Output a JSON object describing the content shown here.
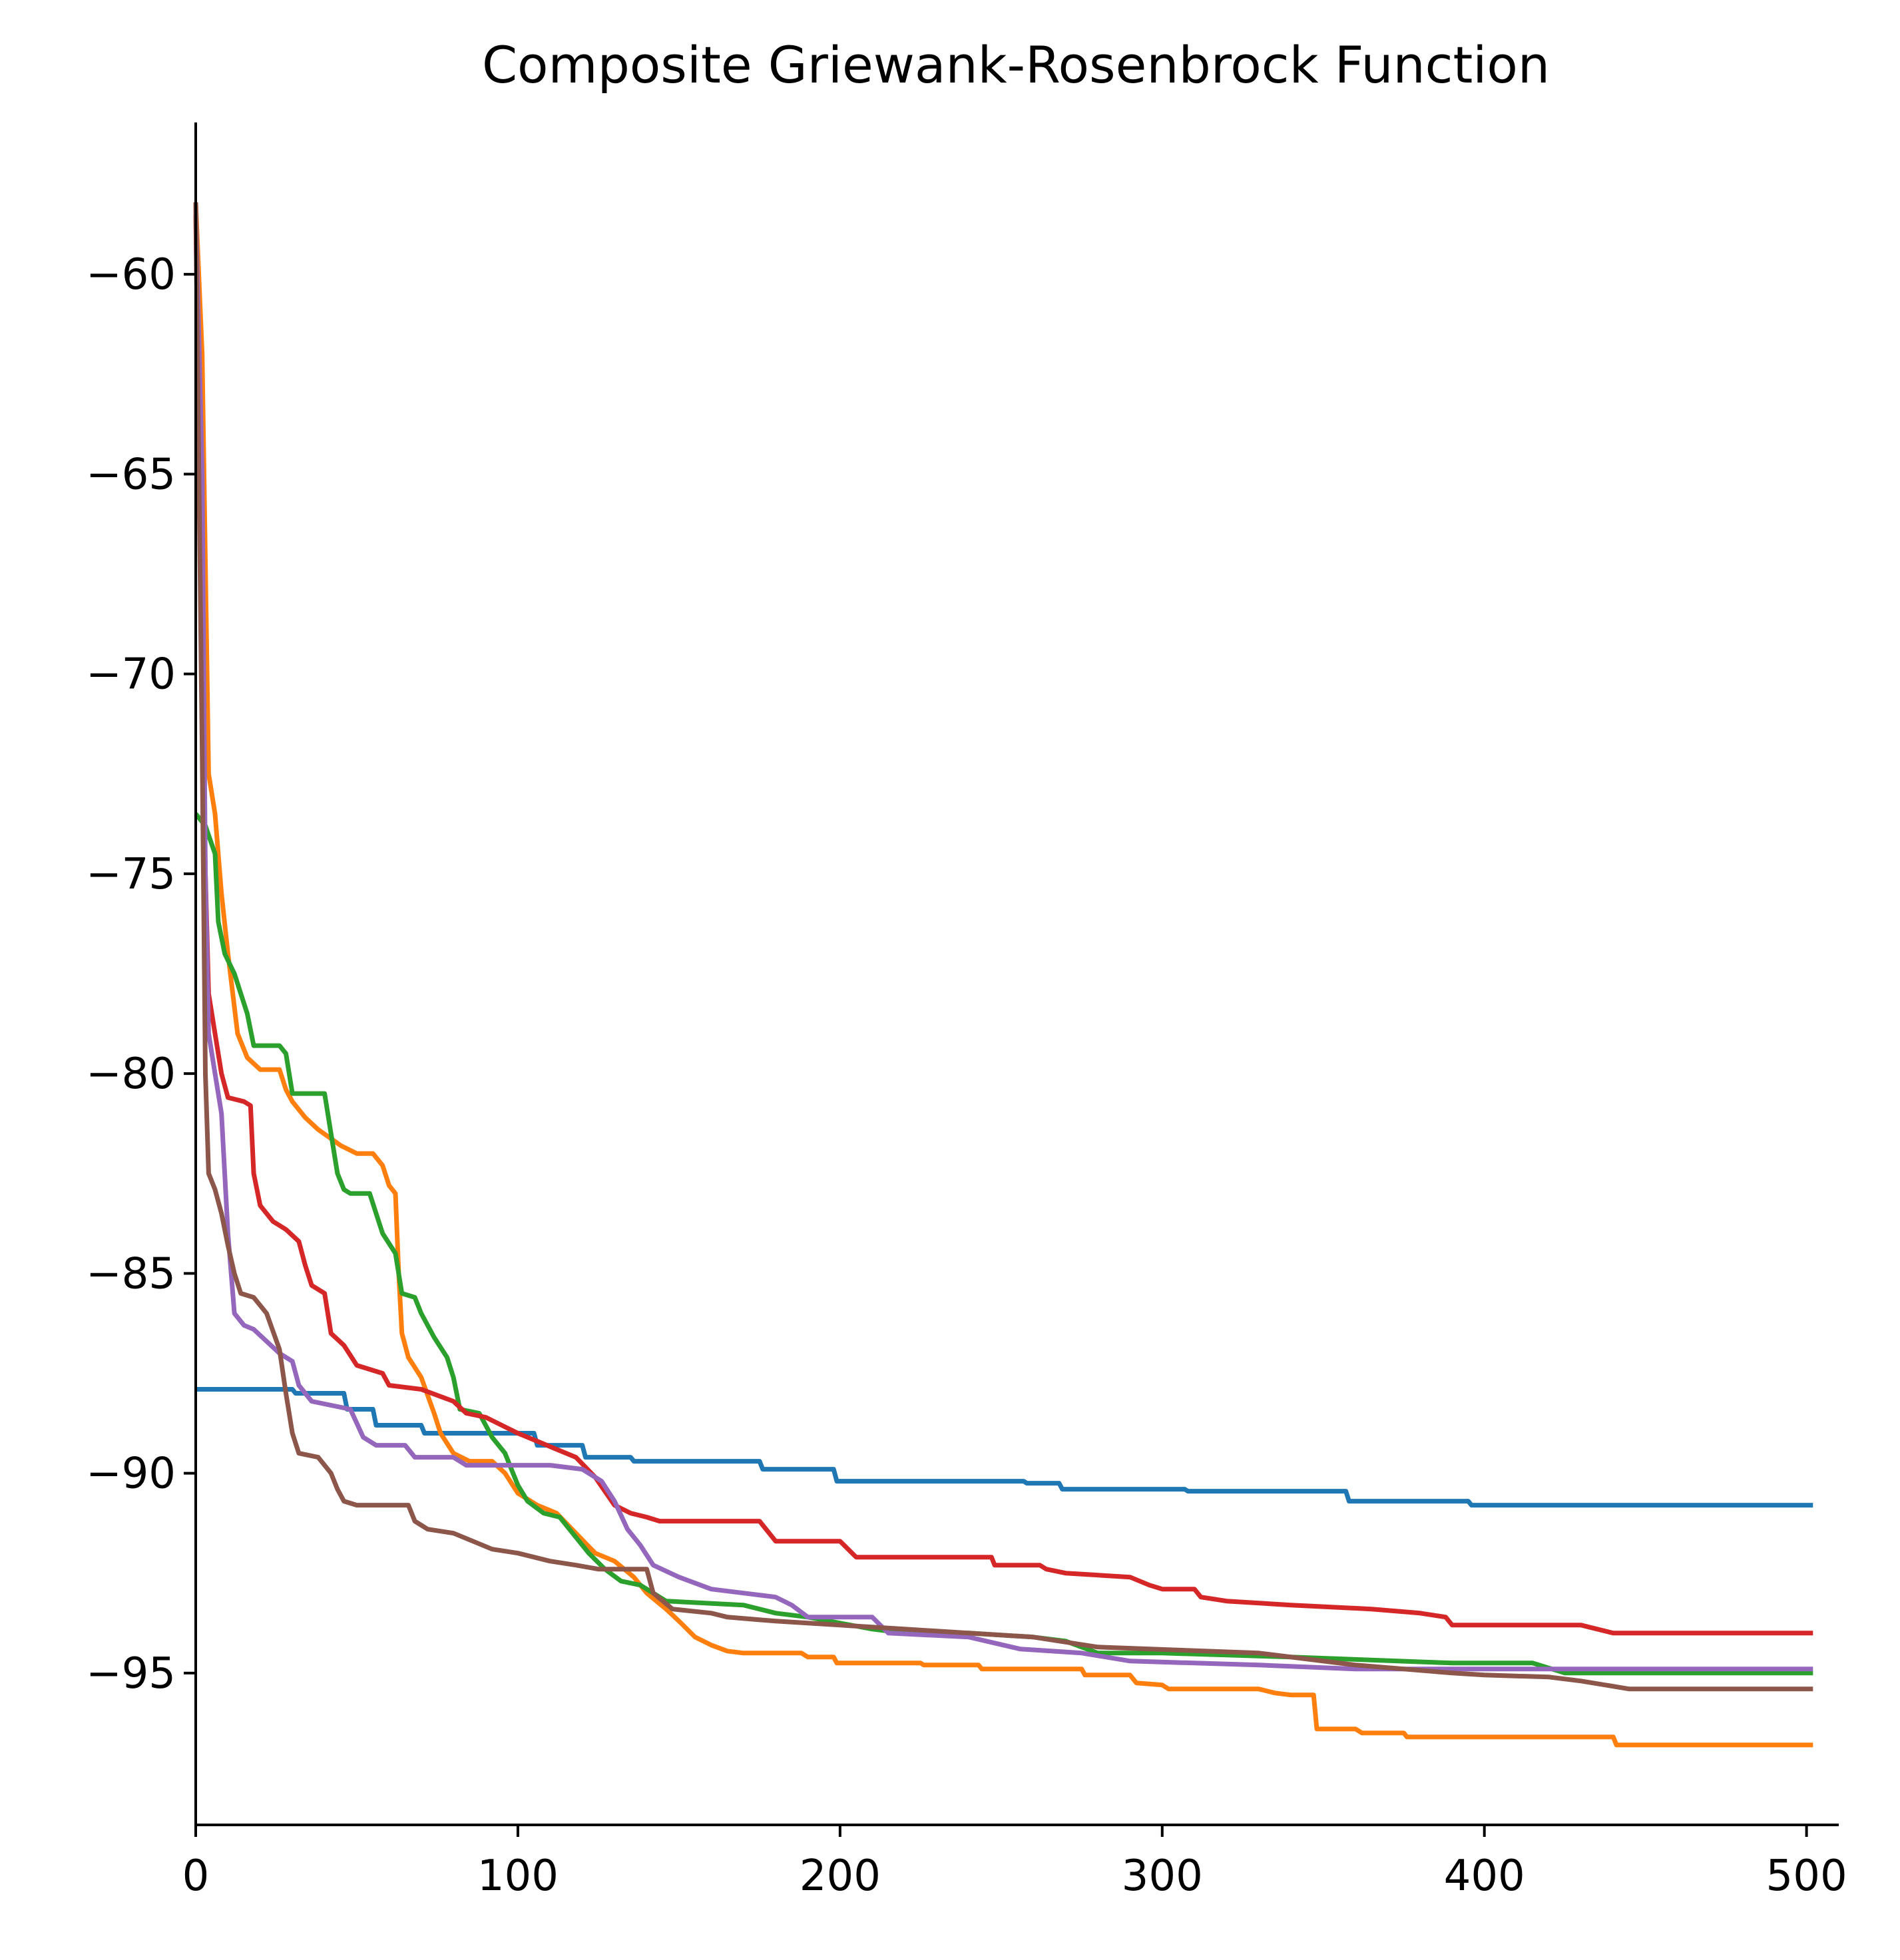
{
  "chart_data": {
    "type": "line",
    "title": "Composite Griewank-Rosenbrock Function",
    "xlabel": "",
    "ylabel": "",
    "xlim": [
      0,
      510
    ],
    "ylim": [
      -98.8,
      -56.2
    ],
    "x_ticks": [
      0,
      100,
      200,
      300,
      400,
      500
    ],
    "x_tick_labels": [
      "0",
      "100",
      "200",
      "300",
      "400",
      "500"
    ],
    "y_ticks": [
      -95,
      -90,
      -85,
      -80,
      -75,
      -70,
      -65,
      -60
    ],
    "y_tick_labels": [
      "−95",
      "−90",
      "−85",
      "−80",
      "−75",
      "−70",
      "−65",
      "−60"
    ],
    "grid": false,
    "series": [
      {
        "color": "#1f77b4",
        "points": [
          [
            0,
            -87.9
          ],
          [
            30,
            -87.9
          ],
          [
            31,
            -88.0
          ],
          [
            46,
            -88.0
          ],
          [
            47,
            -88.4
          ],
          [
            55,
            -88.4
          ],
          [
            56,
            -88.8
          ],
          [
            70,
            -88.8
          ],
          [
            71,
            -89.0
          ],
          [
            105,
            -89.0
          ],
          [
            106,
            -89.3
          ],
          [
            120,
            -89.3
          ],
          [
            121,
            -89.6
          ],
          [
            135,
            -89.6
          ],
          [
            136,
            -89.7
          ],
          [
            175,
            -89.7
          ],
          [
            176,
            -89.9
          ],
          [
            198,
            -89.9
          ],
          [
            199,
            -90.2
          ],
          [
            257,
            -90.2
          ],
          [
            258,
            -90.25
          ],
          [
            268,
            -90.25
          ],
          [
            269,
            -90.4
          ],
          [
            307,
            -90.4
          ],
          [
            308,
            -90.45
          ],
          [
            357,
            -90.45
          ],
          [
            358,
            -90.7
          ],
          [
            395,
            -90.7
          ],
          [
            396,
            -90.8
          ],
          [
            502,
            -90.8
          ]
        ]
      },
      {
        "color": "#ff7f0e",
        "points": [
          [
            0,
            -58.2
          ],
          [
            2,
            -62.0
          ],
          [
            4,
            -72.5
          ],
          [
            6,
            -73.5
          ],
          [
            8,
            -75.5
          ],
          [
            10,
            -77.0
          ],
          [
            13,
            -79.0
          ],
          [
            16,
            -79.6
          ],
          [
            20,
            -79.9
          ],
          [
            26,
            -79.9
          ],
          [
            28,
            -80.4
          ],
          [
            30,
            -80.7
          ],
          [
            34,
            -81.1
          ],
          [
            38,
            -81.4
          ],
          [
            45,
            -81.8
          ],
          [
            50,
            -82.0
          ],
          [
            55,
            -82.0
          ],
          [
            58,
            -82.3
          ],
          [
            60,
            -82.8
          ],
          [
            62,
            -83.0
          ],
          [
            63,
            -85.0
          ],
          [
            64,
            -86.5
          ],
          [
            66,
            -87.1
          ],
          [
            70,
            -87.6
          ],
          [
            74,
            -88.5
          ],
          [
            76,
            -89.0
          ],
          [
            80,
            -89.5
          ],
          [
            85,
            -89.7
          ],
          [
            92,
            -89.7
          ],
          [
            96,
            -90.0
          ],
          [
            100,
            -90.5
          ],
          [
            106,
            -90.8
          ],
          [
            112,
            -91.0
          ],
          [
            118,
            -91.5
          ],
          [
            124,
            -92.0
          ],
          [
            130,
            -92.2
          ],
          [
            136,
            -92.6
          ],
          [
            140,
            -93.0
          ],
          [
            146,
            -93.4
          ],
          [
            150,
            -93.7
          ],
          [
            155,
            -94.1
          ],
          [
            160,
            -94.3
          ],
          [
            165,
            -94.45
          ],
          [
            170,
            -94.5
          ],
          [
            188,
            -94.5
          ],
          [
            190,
            -94.6
          ],
          [
            198,
            -94.6
          ],
          [
            199,
            -94.75
          ],
          [
            225,
            -94.75
          ],
          [
            226,
            -94.8
          ],
          [
            243,
            -94.8
          ],
          [
            244,
            -94.9
          ],
          [
            275,
            -94.9
          ],
          [
            276,
            -95.05
          ],
          [
            290,
            -95.05
          ],
          [
            292,
            -95.25
          ],
          [
            300,
            -95.3
          ],
          [
            302,
            -95.4
          ],
          [
            330,
            -95.4
          ],
          [
            335,
            -95.5
          ],
          [
            340,
            -95.55
          ],
          [
            347,
            -95.55
          ],
          [
            348,
            -96.4
          ],
          [
            360,
            -96.4
          ],
          [
            362,
            -96.5
          ],
          [
            375,
            -96.5
          ],
          [
            376,
            -96.6
          ],
          [
            440,
            -96.6
          ],
          [
            441,
            -96.8
          ],
          [
            502,
            -96.8
          ]
        ]
      },
      {
        "color": "#2ca02c",
        "points": [
          [
            0,
            -73.5
          ],
          [
            3,
            -73.8
          ],
          [
            6,
            -74.5
          ],
          [
            7,
            -76.2
          ],
          [
            9,
            -77.0
          ],
          [
            12,
            -77.5
          ],
          [
            14,
            -78.0
          ],
          [
            16,
            -78.5
          ],
          [
            18,
            -79.3
          ],
          [
            26,
            -79.3
          ],
          [
            28,
            -79.5
          ],
          [
            30,
            -80.5
          ],
          [
            40,
            -80.5
          ],
          [
            42,
            -81.5
          ],
          [
            44,
            -82.5
          ],
          [
            46,
            -82.9
          ],
          [
            48,
            -83.0
          ],
          [
            54,
            -83.0
          ],
          [
            56,
            -83.5
          ],
          [
            58,
            -84.0
          ],
          [
            62,
            -84.5
          ],
          [
            64,
            -85.5
          ],
          [
            68,
            -85.6
          ],
          [
            70,
            -86.0
          ],
          [
            74,
            -86.6
          ],
          [
            78,
            -87.1
          ],
          [
            80,
            -87.6
          ],
          [
            82,
            -88.4
          ],
          [
            88,
            -88.5
          ],
          [
            92,
            -89.1
          ],
          [
            96,
            -89.5
          ],
          [
            98,
            -89.9
          ],
          [
            100,
            -90.3
          ],
          [
            103,
            -90.7
          ],
          [
            108,
            -91.0
          ],
          [
            113,
            -91.1
          ],
          [
            117,
            -91.5
          ],
          [
            122,
            -92.0
          ],
          [
            127,
            -92.4
          ],
          [
            132,
            -92.7
          ],
          [
            138,
            -92.8
          ],
          [
            142,
            -93.0
          ],
          [
            146,
            -93.2
          ],
          [
            170,
            -93.3
          ],
          [
            180,
            -93.5
          ],
          [
            190,
            -93.6
          ],
          [
            200,
            -93.75
          ],
          [
            210,
            -93.9
          ],
          [
            220,
            -94.0
          ],
          [
            240,
            -94.0
          ],
          [
            260,
            -94.1
          ],
          [
            270,
            -94.2
          ],
          [
            280,
            -94.5
          ],
          [
            300,
            -94.5
          ],
          [
            340,
            -94.6
          ],
          [
            390,
            -94.75
          ],
          [
            415,
            -94.75
          ],
          [
            425,
            -95.0
          ],
          [
            502,
            -95.0
          ]
        ]
      },
      {
        "color": "#d62728",
        "points": [
          [
            0,
            -58.5
          ],
          [
            2,
            -70.0
          ],
          [
            3,
            -75.0
          ],
          [
            4,
            -78.0
          ],
          [
            6,
            -79.0
          ],
          [
            8,
            -80.0
          ],
          [
            10,
            -80.6
          ],
          [
            15,
            -80.7
          ],
          [
            17,
            -80.8
          ],
          [
            18,
            -82.5
          ],
          [
            20,
            -83.3
          ],
          [
            24,
            -83.7
          ],
          [
            28,
            -83.9
          ],
          [
            32,
            -84.2
          ],
          [
            34,
            -84.8
          ],
          [
            36,
            -85.3
          ],
          [
            40,
            -85.5
          ],
          [
            42,
            -86.5
          ],
          [
            46,
            -86.8
          ],
          [
            50,
            -87.3
          ],
          [
            54,
            -87.4
          ],
          [
            58,
            -87.5
          ],
          [
            60,
            -87.8
          ],
          [
            70,
            -87.9
          ],
          [
            80,
            -88.2
          ],
          [
            84,
            -88.5
          ],
          [
            90,
            -88.6
          ],
          [
            100,
            -89.0
          ],
          [
            106,
            -89.2
          ],
          [
            112,
            -89.4
          ],
          [
            118,
            -89.6
          ],
          [
            124,
            -90.1
          ],
          [
            130,
            -90.8
          ],
          [
            135,
            -91.0
          ],
          [
            140,
            -91.1
          ],
          [
            144,
            -91.2
          ],
          [
            175,
            -91.2
          ],
          [
            180,
            -91.7
          ],
          [
            200,
            -91.7
          ],
          [
            205,
            -92.1
          ],
          [
            247,
            -92.1
          ],
          [
            248,
            -92.3
          ],
          [
            262,
            -92.3
          ],
          [
            264,
            -92.4
          ],
          [
            270,
            -92.5
          ],
          [
            290,
            -92.6
          ],
          [
            296,
            -92.8
          ],
          [
            300,
            -92.9
          ],
          [
            310,
            -92.9
          ],
          [
            312,
            -93.1
          ],
          [
            320,
            -93.2
          ],
          [
            340,
            -93.3
          ],
          [
            365,
            -93.4
          ],
          [
            380,
            -93.5
          ],
          [
            388,
            -93.6
          ],
          [
            390,
            -93.8
          ],
          [
            430,
            -93.8
          ],
          [
            440,
            -94.0
          ],
          [
            502,
            -94.0
          ]
        ]
      },
      {
        "color": "#9467bd",
        "points": [
          [
            0,
            -58.3
          ],
          [
            2,
            -65.0
          ],
          [
            3,
            -75.0
          ],
          [
            4,
            -79.0
          ],
          [
            6,
            -80.0
          ],
          [
            8,
            -81.0
          ],
          [
            10,
            -84.0
          ],
          [
            12,
            -86.0
          ],
          [
            15,
            -86.3
          ],
          [
            18,
            -86.4
          ],
          [
            22,
            -86.7
          ],
          [
            26,
            -87.0
          ],
          [
            30,
            -87.2
          ],
          [
            32,
            -87.8
          ],
          [
            36,
            -88.2
          ],
          [
            48,
            -88.4
          ],
          [
            52,
            -89.1
          ],
          [
            56,
            -89.3
          ],
          [
            65,
            -89.3
          ],
          [
            68,
            -89.6
          ],
          [
            80,
            -89.6
          ],
          [
            84,
            -89.8
          ],
          [
            110,
            -89.8
          ],
          [
            120,
            -89.9
          ],
          [
            126,
            -90.2
          ],
          [
            130,
            -90.7
          ],
          [
            134,
            -91.4
          ],
          [
            138,
            -91.8
          ],
          [
            142,
            -92.3
          ],
          [
            150,
            -92.6
          ],
          [
            160,
            -92.9
          ],
          [
            170,
            -93.0
          ],
          [
            180,
            -93.1
          ],
          [
            185,
            -93.3
          ],
          [
            190,
            -93.6
          ],
          [
            210,
            -93.6
          ],
          [
            215,
            -94.0
          ],
          [
            240,
            -94.1
          ],
          [
            256,
            -94.4
          ],
          [
            275,
            -94.5
          ],
          [
            290,
            -94.7
          ],
          [
            330,
            -94.8
          ],
          [
            360,
            -94.9
          ],
          [
            400,
            -94.9
          ],
          [
            502,
            -94.9
          ]
        ]
      },
      {
        "color": "#8c564b",
        "points": [
          [
            0,
            -58.2
          ],
          [
            2,
            -72.0
          ],
          [
            3,
            -80.0
          ],
          [
            4,
            -82.5
          ],
          [
            6,
            -82.9
          ],
          [
            8,
            -83.5
          ],
          [
            10,
            -84.3
          ],
          [
            12,
            -85.0
          ],
          [
            14,
            -85.5
          ],
          [
            18,
            -85.6
          ],
          [
            22,
            -86.0
          ],
          [
            26,
            -86.9
          ],
          [
            28,
            -88.0
          ],
          [
            30,
            -89.0
          ],
          [
            32,
            -89.5
          ],
          [
            38,
            -89.6
          ],
          [
            42,
            -90.0
          ],
          [
            44,
            -90.4
          ],
          [
            46,
            -90.7
          ],
          [
            50,
            -90.8
          ],
          [
            66,
            -90.8
          ],
          [
            68,
            -91.2
          ],
          [
            72,
            -91.4
          ],
          [
            80,
            -91.5
          ],
          [
            86,
            -91.7
          ],
          [
            92,
            -91.9
          ],
          [
            100,
            -92.0
          ],
          [
            110,
            -92.2
          ],
          [
            118,
            -92.3
          ],
          [
            125,
            -92.4
          ],
          [
            140,
            -92.4
          ],
          [
            142,
            -93.0
          ],
          [
            148,
            -93.4
          ],
          [
            160,
            -93.5
          ],
          [
            165,
            -93.6
          ],
          [
            180,
            -93.7
          ],
          [
            200,
            -93.8
          ],
          [
            210,
            -93.85
          ],
          [
            220,
            -93.9
          ],
          [
            260,
            -94.1
          ],
          [
            280,
            -94.35
          ],
          [
            330,
            -94.5
          ],
          [
            360,
            -94.8
          ],
          [
            390,
            -95.0
          ],
          [
            400,
            -95.05
          ],
          [
            420,
            -95.1
          ],
          [
            430,
            -95.2
          ],
          [
            445,
            -95.4
          ],
          [
            502,
            -95.4
          ]
        ]
      }
    ]
  }
}
